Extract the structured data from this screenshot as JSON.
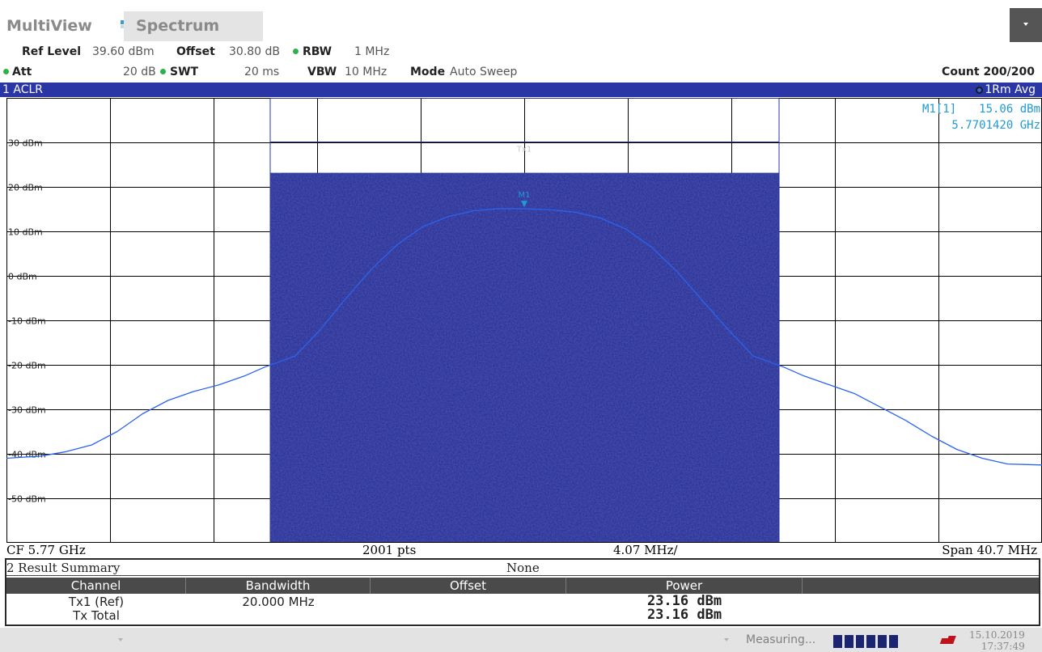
{
  "titlebar": {
    "multiview": "MultiView",
    "spectrum": "Spectrum"
  },
  "settings": {
    "ref_level_label": "Ref Level",
    "ref_level_value": "39.60 dBm",
    "offset_label": "Offset",
    "offset_value": "30.80 dB",
    "rbw_label": "RBW",
    "rbw_value": "1 MHz",
    "att_label": "Att",
    "att_value": "20 dB",
    "swt_label": "SWT",
    "swt_value": "20 ms",
    "vbw_label": "VBW",
    "vbw_value": "10 MHz",
    "mode_label": "Mode",
    "mode_value": "Auto Sweep",
    "count": "Count 200/200"
  },
  "window1": {
    "title": "1 ACLR",
    "trace_label": "1Rm Avg",
    "marker_name": "M1[1]",
    "marker_level": "15.06 dBm",
    "marker_freq": "5.7701420 GHz",
    "marker_tag": "M1",
    "channel_tag": "Tx1",
    "footer_cf": "CF 5.77 GHz",
    "footer_pts": "2001 pts",
    "footer_div": "4.07 MHz/",
    "footer_span": "Span 40.7 MHz"
  },
  "chart_data": {
    "type": "line",
    "ylim": [
      -60,
      40
    ],
    "ytick_labels": [
      "30 dBm",
      "20 dBm",
      "10 dBm",
      "0 dBm",
      "-10 dBm",
      "-20 dBm",
      "-30 dBm",
      "-40 dBm",
      "-50 dBm"
    ],
    "ytick_values": [
      30,
      20,
      10,
      0,
      -10,
      -20,
      -30,
      -40,
      -50
    ],
    "xlim": [
      -20.35,
      20.35
    ],
    "x_unit": "MHz offset from CF",
    "channel_bar": {
      "from": -10,
      "to": 10,
      "level_dbm": 23.16
    },
    "series": [
      {
        "x": [
          -20.35,
          -19,
          -18,
          -17,
          -16,
          -15,
          -14,
          -13,
          -12,
          -11,
          -10.2,
          -9,
          -8,
          -7,
          -6,
          -5,
          -4,
          -3,
          -2,
          -1,
          0,
          1,
          2,
          3,
          4,
          5,
          6,
          7,
          8,
          9,
          10.2,
          11,
          12,
          13,
          14,
          15,
          16,
          17,
          18,
          19,
          20.35
        ],
        "values": [
          -41,
          -40.5,
          -39.5,
          -38,
          -35,
          -31,
          -28,
          -26,
          -24.5,
          -22.5,
          -20.5,
          -18,
          -12,
          -5,
          1.5,
          7,
          11,
          13.3,
          14.6,
          15.1,
          15.06,
          14.9,
          14.3,
          13,
          10.5,
          6.5,
          1,
          -5.5,
          -12,
          -18,
          -20.5,
          -22.5,
          -24.5,
          -26.5,
          -29.5,
          -32.5,
          -36,
          -39,
          -41,
          -42.3,
          -42.5
        ]
      }
    ],
    "marker": {
      "x": 0.0,
      "y": 15.06
    }
  },
  "result_summary": {
    "title": "2 Result Summary",
    "mode": "None",
    "columns": [
      "Channel",
      "Bandwidth",
      "Offset",
      "Power"
    ],
    "rows": [
      {
        "channel": "Tx1 (Ref)",
        "bandwidth": "20.000 MHz",
        "offset": "",
        "power": "23.16 dBm"
      },
      {
        "channel": "Tx Total",
        "bandwidth": "",
        "offset": "",
        "power": "23.16 dBm"
      }
    ]
  },
  "statusbar": {
    "measuring": "Measuring...",
    "progress_segments": 6,
    "date": "15.10.2019",
    "time": "17:37:49"
  },
  "colors": {
    "header_blue": "#2a36a6",
    "channel_fill": "#232a8f",
    "trace": "#2a63f0",
    "marker": "#1e9ad6"
  }
}
